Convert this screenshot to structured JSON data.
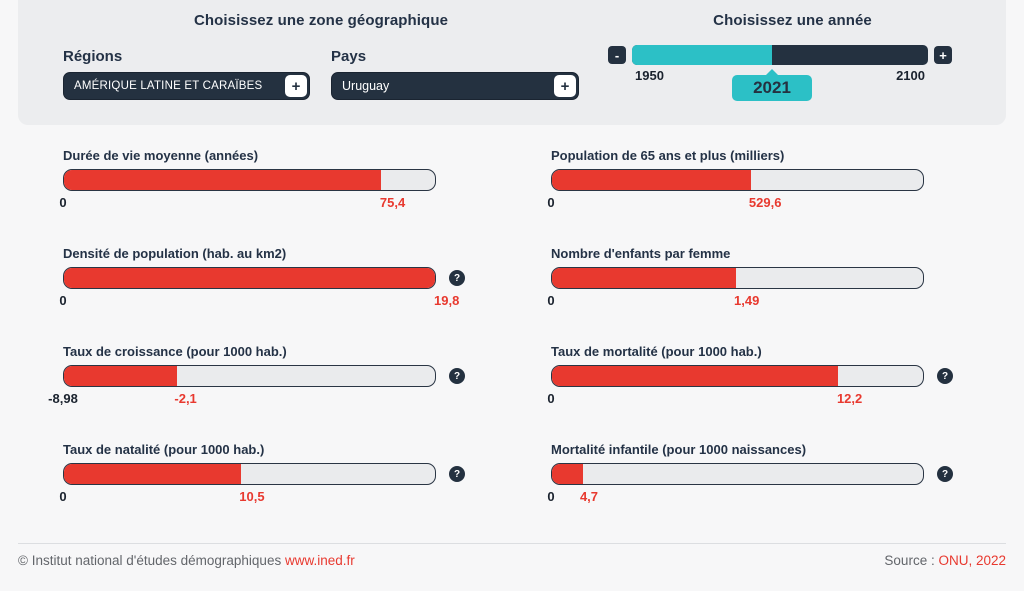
{
  "colors": {
    "accent_red": "#e8392f",
    "teal": "#2cc0c6",
    "navy": "#243140"
  },
  "icons": {
    "expand": "+",
    "decrement": "-",
    "increment": "+",
    "help": "?"
  },
  "panel": {
    "geo_title": "Choisissez une zone géographique",
    "regions_label": "Régions",
    "regions_value": "AMÉRIQUE LATINE ET CARAÏBES",
    "pays_label": "Pays",
    "pays_value": "Uruguay",
    "year_title": "Choisissez une année",
    "year_min": "1950",
    "year_max": "2100",
    "year_value": "2021",
    "year_pct": 47.3
  },
  "indicators": [
    {
      "title": "Durée de vie moyenne (années)",
      "min": "0",
      "value": "75,4",
      "pct": 85.5,
      "help": false
    },
    {
      "title": "Population de 65 ans et plus (milliers)",
      "min": "0",
      "value": "529,6",
      "pct": 53.6,
      "help": false
    },
    {
      "title": "Densité de population (hab. au km2)",
      "min": "0",
      "value": "19,8",
      "pct": 100,
      "help": true
    },
    {
      "title": "Nombre d'enfants par femme",
      "min": "0",
      "value": "1,49",
      "pct": 49.6,
      "help": false
    },
    {
      "title": "Taux de croissance (pour 1000 hab.)",
      "min": "-8,98",
      "value": "-2,1",
      "pct": 30.4,
      "help": true
    },
    {
      "title": "Taux de mortalité (pour 1000 hab.)",
      "min": "0",
      "value": "12,2",
      "pct": 77.2,
      "help": true
    },
    {
      "title": "Taux de natalité (pour 1000 hab.)",
      "min": "0",
      "value": "10,5",
      "pct": 47.8,
      "help": true
    },
    {
      "title": "Mortalité infantile (pour 1000 naissances)",
      "min": "0",
      "value": "4,7",
      "pct": 8.3,
      "help": true
    }
  ],
  "footer": {
    "copyright": "© Institut national d'études démographiques ",
    "link": "www.ined.fr",
    "source_label": "Source : ",
    "source_link": "ONU, 2022"
  }
}
